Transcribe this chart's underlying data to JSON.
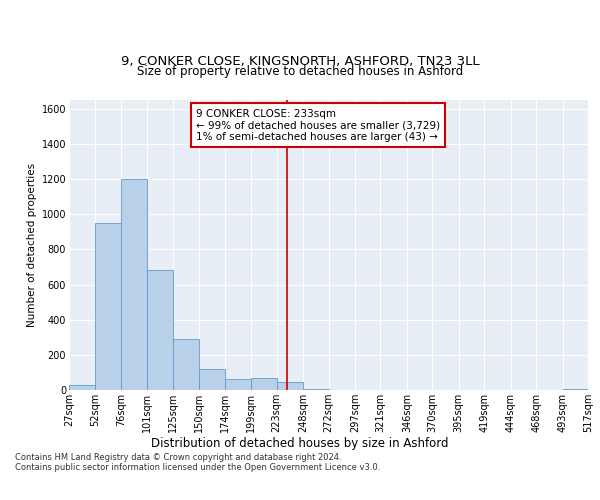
{
  "title1": "9, CONKER CLOSE, KINGSNORTH, ASHFORD, TN23 3LL",
  "title2": "Size of property relative to detached houses in Ashford",
  "xlabel": "Distribution of detached houses by size in Ashford",
  "ylabel": "Number of detached properties",
  "bar_color": "#b8d0e8",
  "bar_edge_color": "#6699cc",
  "background_color": "#e8eef5",
  "grid_color": "#ffffff",
  "annotation_line_color": "#cc0000",
  "annotation_box_color": "#cc0000",
  "annotation_line1": "9 CONKER CLOSE: 233sqm",
  "annotation_line2": "← 99% of detached houses are smaller (3,729)",
  "annotation_line3": "1% of semi-detached houses are larger (43) →",
  "property_size": 233,
  "bin_edges": [
    27,
    52,
    76,
    101,
    125,
    150,
    174,
    199,
    223,
    248,
    272,
    297,
    321,
    346,
    370,
    395,
    419,
    444,
    468,
    493,
    517
  ],
  "bin_counts": [
    30,
    950,
    1200,
    680,
    290,
    120,
    60,
    70,
    43,
    4,
    0,
    0,
    1,
    0,
    0,
    0,
    0,
    0,
    0,
    4
  ],
  "ylim": [
    0,
    1650
  ],
  "yticks": [
    0,
    200,
    400,
    600,
    800,
    1000,
    1200,
    1400,
    1600
  ],
  "footer_line1": "Contains HM Land Registry data © Crown copyright and database right 2024.",
  "footer_line2": "Contains public sector information licensed under the Open Government Licence v3.0.",
  "title1_fontsize": 9.5,
  "title2_fontsize": 8.5,
  "xlabel_fontsize": 8.5,
  "ylabel_fontsize": 7.5,
  "tick_fontsize": 7,
  "annotation_fontsize": 7.5,
  "footer_fontsize": 6
}
